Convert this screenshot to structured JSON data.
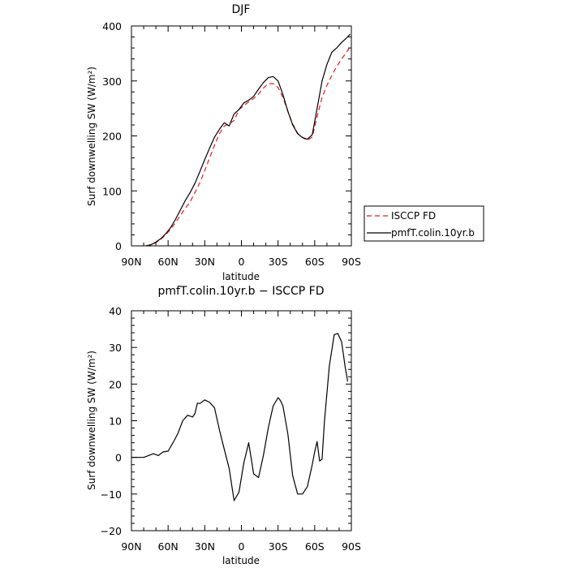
{
  "chart_data": [
    {
      "type": "line",
      "title": "DJF",
      "xlabel": "latitude",
      "ylabel": "Surf downwelling SW (W/m²)",
      "xlim": [
        90,
        -90
      ],
      "ylim": [
        0,
        400
      ],
      "x_tick_values": [
        90,
        60,
        30,
        0,
        -30,
        -60,
        -90
      ],
      "x_tick_labels": [
        "90N",
        "60N",
        "30N",
        "0",
        "30S",
        "60S",
        "90S"
      ],
      "y_tick_values": [
        0,
        100,
        200,
        300,
        400
      ],
      "y_tick_labels": [
        "0",
        "100",
        "200",
        "300",
        "400"
      ],
      "grid": false,
      "legend_position": "right",
      "series": [
        {
          "name": "ISCCP FD",
          "color": "#e41a1c",
          "dash": "dashed",
          "x": [
            78,
            74,
            70,
            66,
            62,
            58,
            54,
            50,
            46,
            42,
            38,
            34,
            30,
            26,
            22,
            18,
            14,
            10,
            6,
            2,
            -2,
            -6,
            -10,
            -14,
            -18,
            -22,
            -26,
            -30,
            -34,
            -38,
            -42,
            -46,
            -50,
            -54,
            -58,
            -62,
            -66,
            -70,
            -74,
            -78,
            -82,
            -86,
            -89
          ],
          "y": [
            0,
            2,
            6,
            12,
            20,
            30,
            42,
            55,
            68,
            80,
            97,
            115,
            137,
            160,
            183,
            204,
            218,
            222,
            228,
            248,
            255,
            262,
            268,
            276,
            287,
            295,
            295,
            288,
            270,
            245,
            222,
            205,
            197,
            192,
            198,
            235,
            270,
            292,
            310,
            326,
            340,
            352,
            362
          ]
        },
        {
          "name": "pmfT.colin.10yr.b",
          "color": "#000000",
          "dash": "solid",
          "x": [
            78,
            74,
            70,
            66,
            62,
            58,
            54,
            50,
            46,
            42,
            38,
            34,
            30,
            26,
            22,
            18,
            14,
            10,
            6,
            2,
            -2,
            -6,
            -10,
            -14,
            -18,
            -22,
            -26,
            -30,
            -34,
            -38,
            -42,
            -46,
            -50,
            -54,
            -58,
            -62,
            -66,
            -70,
            -74,
            -78,
            -82,
            -86,
            -89
          ],
          "y": [
            0,
            2,
            7,
            13,
            22,
            33,
            48,
            65,
            82,
            97,
            114,
            135,
            157,
            178,
            198,
            212,
            224,
            218,
            240,
            248,
            260,
            265,
            272,
            285,
            297,
            306,
            308,
            300,
            275,
            245,
            220,
            204,
            197,
            194,
            202,
            250,
            300,
            330,
            352,
            360,
            370,
            378,
            385
          ]
        }
      ]
    },
    {
      "type": "line",
      "title": "pmfT.colin.10yr.b − ISCCP FD",
      "xlabel": "latitude",
      "ylabel": "Surf downwelling SW (W/m²)",
      "xlim": [
        90,
        -90
      ],
      "ylim": [
        -20,
        40
      ],
      "x_tick_values": [
        90,
        60,
        30,
        0,
        -30,
        -60,
        -90
      ],
      "x_tick_labels": [
        "90N",
        "60N",
        "30N",
        "0",
        "30S",
        "60S",
        "90S"
      ],
      "y_tick_values": [
        -20,
        -10,
        0,
        10,
        20,
        30,
        40
      ],
      "y_tick_labels": [
        "−20",
        "−10",
        "0",
        "10",
        "20",
        "30",
        "40"
      ],
      "grid": false,
      "series": [
        {
          "name": "",
          "color": "#000000",
          "dash": "solid",
          "x": [
            90,
            84,
            80,
            76,
            72,
            68,
            64,
            60,
            56,
            52,
            48,
            44,
            40,
            38,
            36,
            34,
            30,
            26,
            22,
            18,
            14,
            10,
            6,
            2,
            -2,
            -6,
            -10,
            -14,
            -18,
            -22,
            -26,
            -30,
            -32,
            -34,
            -38,
            -42,
            -46,
            -50,
            -54,
            -58,
            -60,
            -62,
            -64,
            -66,
            -68,
            -72,
            -76,
            -79,
            -82,
            -85,
            -87
          ],
          "y": [
            0,
            0,
            0,
            0.5,
            1,
            0.5,
            1.5,
            1.7,
            4,
            6.5,
            10,
            11.5,
            11,
            12,
            14.8,
            14.7,
            15.7,
            15,
            13.5,
            7.5,
            2.2,
            -3,
            -11.8,
            -9.5,
            -1.5,
            4,
            -4.5,
            -5.5,
            0.5,
            8,
            14,
            16.3,
            15.5,
            14,
            6.5,
            -5,
            -10,
            -10,
            -8,
            -2,
            1.5,
            4.3,
            -1,
            -0.5,
            10,
            25,
            33.5,
            33.8,
            31.5,
            24.5,
            20.7
          ]
        }
      ]
    }
  ]
}
